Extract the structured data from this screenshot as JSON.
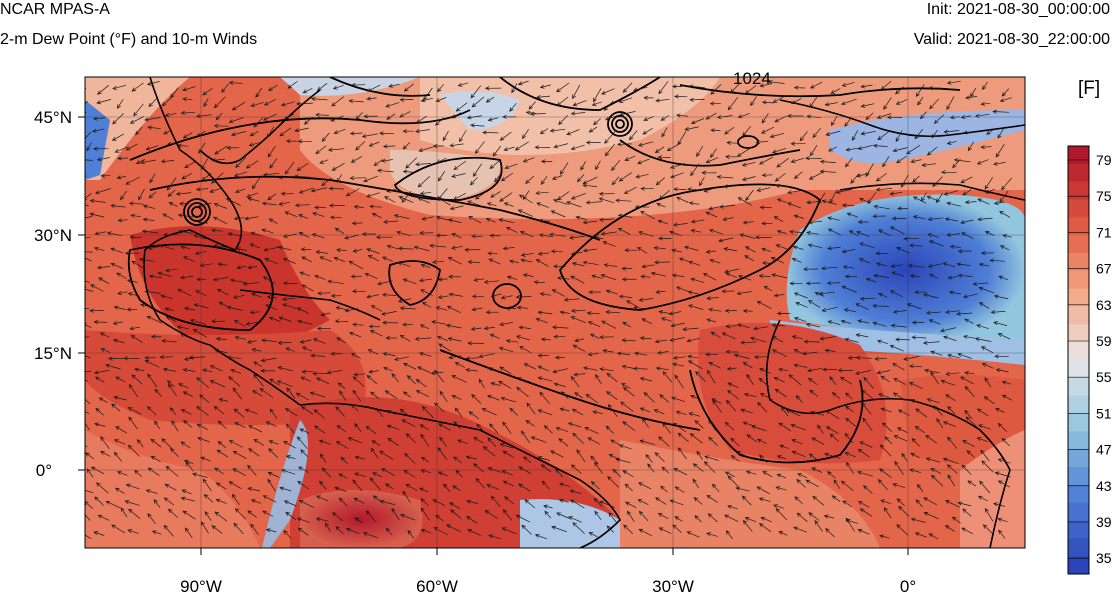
{
  "header": {
    "model": "NCAR MPAS-A",
    "field": "2-m Dew Point (°F) and 10-m Winds",
    "init": "Init: 2021-08-30_00:00:00",
    "valid": "Valid: 2021-08-30_22:00:00"
  },
  "map": {
    "lat_labels": [
      "45°N",
      "30°N",
      "15°N",
      "0°"
    ],
    "lon_labels": [
      "90°W",
      "60°W",
      "30°W",
      "0°"
    ],
    "contour_label": "1024"
  },
  "colorbar": {
    "unit": "[F]",
    "ticks": [
      "79",
      "75",
      "71",
      "67",
      "63",
      "59",
      "55",
      "51",
      "47",
      "43",
      "39",
      "35"
    ],
    "colors": {
      "warm_dark": "#b2182b",
      "warm": "#e0583f",
      "warm_light": "#f4a582",
      "neutral": "#e8e8e8",
      "cool_light": "#92c5de",
      "cool": "#4f7fd6",
      "cool_dark": "#2b45b8"
    }
  }
}
